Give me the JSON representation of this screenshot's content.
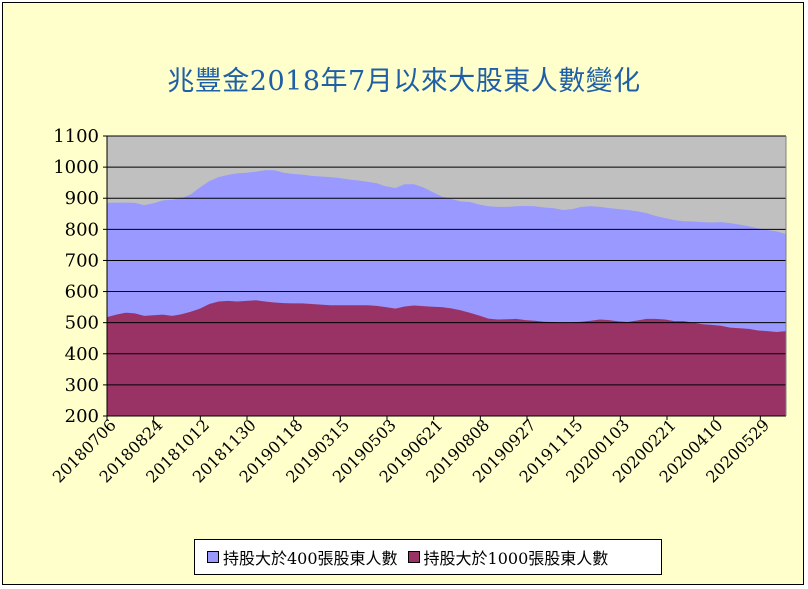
{
  "chart_data": {
    "type": "area",
    "title": "兆豐金2018年7月以來大股東人數變化",
    "xlabel": "",
    "ylabel": "",
    "ylim": [
      200,
      1100
    ],
    "yticks": [
      200,
      300,
      400,
      500,
      600,
      700,
      800,
      900,
      1000,
      1100
    ],
    "grid": true,
    "legend_position": "bottom",
    "x_tick_labels": [
      "20180706",
      "20180824",
      "20181012",
      "20181130",
      "20190118",
      "20190315",
      "20190503",
      "20190621",
      "20190808",
      "20190927",
      "20191115",
      "20200103",
      "20200221",
      "20200410",
      "20200529"
    ],
    "series": [
      {
        "name": "持股大於400張股東人數",
        "color": "#9999ff",
        "values": [
          885,
          886,
          886,
          885,
          878,
          884,
          893,
          895,
          900,
          912,
          935,
          955,
          968,
          975,
          980,
          982,
          985,
          990,
          990,
          982,
          978,
          976,
          972,
          970,
          968,
          965,
          960,
          957,
          953,
          948,
          938,
          933,
          945,
          945,
          935,
          920,
          905,
          898,
          890,
          888,
          880,
          874,
          872,
          872,
          874,
          875,
          874,
          870,
          868,
          862,
          865,
          872,
          874,
          872,
          868,
          865,
          862,
          858,
          852,
          843,
          836,
          830,
          826,
          825,
          823,
          822,
          823,
          820,
          815,
          810,
          803,
          798,
          793,
          785
        ]
      },
      {
        "name": "持股大於1000張股東人數",
        "color": "#993366",
        "values": [
          518,
          526,
          532,
          530,
          522,
          524,
          526,
          522,
          527,
          535,
          545,
          560,
          568,
          570,
          568,
          570,
          572,
          568,
          565,
          563,
          562,
          562,
          560,
          558,
          556,
          556,
          556,
          556,
          556,
          554,
          550,
          545,
          552,
          555,
          553,
          551,
          550,
          546,
          540,
          532,
          523,
          513,
          510,
          511,
          512,
          508,
          506,
          503,
          502,
          500,
          501,
          503,
          506,
          510,
          508,
          504,
          502,
          507,
          512,
          512,
          510,
          505,
          505,
          500,
          495,
          493,
          490,
          484,
          482,
          480,
          475,
          473,
          470,
          473
        ]
      }
    ]
  }
}
